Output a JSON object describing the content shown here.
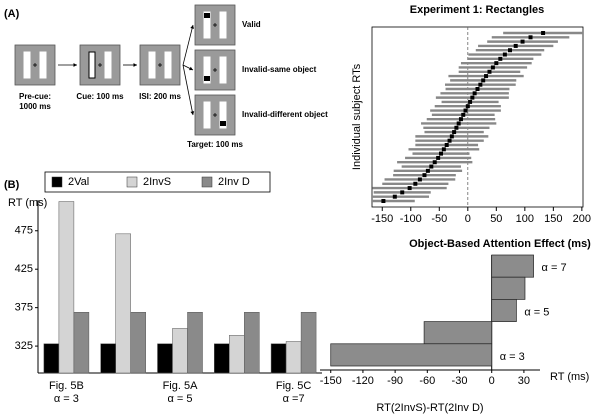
{
  "panel_labels": [
    "(A)",
    "(B)"
  ],
  "diagram": {
    "steps": [
      {
        "lines": [
          "Pre-cue:",
          "1000 ms"
        ]
      },
      {
        "lines": [
          "Cue: 100 ms"
        ]
      },
      {
        "lines": [
          "ISI: 200 ms"
        ]
      },
      {
        "lines": [
          "Target: 100 ms"
        ]
      }
    ],
    "targets": [
      "Valid",
      "Invalid-same object",
      "Invalid-different object"
    ]
  },
  "chart_data": [
    {
      "type": "errorbar",
      "title": "Experiment 1: Rectangles",
      "y_label": "Individual subject RTs",
      "values": [
        -148,
        -128,
        -115,
        -102,
        -92,
        -84,
        -76,
        -70,
        -64,
        -58,
        -52,
        -47,
        -42,
        -37,
        -32,
        -28,
        -24,
        -20,
        -16,
        -12,
        -8,
        -4,
        0,
        4,
        8,
        12,
        17,
        22,
        27,
        32,
        38,
        44,
        50,
        57,
        65,
        74,
        84,
        96,
        110,
        132
      ],
      "errors": [
        55,
        60,
        50,
        65,
        58,
        62,
        55,
        60,
        52,
        66,
        58,
        50,
        62,
        55,
        60,
        64,
        52,
        58,
        66,
        60,
        55,
        62,
        58,
        50,
        64,
        60,
        56,
        62,
        58,
        66,
        54,
        60,
        62,
        58,
        64,
        60,
        66,
        62,
        68,
        70
      ],
      "color": "#000000",
      "error_color": "#888888",
      "xlim": [
        -168,
        202
      ],
      "xticks": [
        -150,
        -100,
        -50,
        0,
        50,
        100,
        150,
        200
      ],
      "zero_line": true
    },
    {
      "type": "grouped_bar",
      "y_label": "RT (ms)",
      "categories": [
        "Fig. 5B",
        null,
        "Fig. 5A",
        null,
        "Fig. 5C"
      ],
      "category_sublabels": [
        "α = 3",
        null,
        "α = 5",
        null,
        "α =7"
      ],
      "series": [
        {
          "name": "2Val",
          "color": "#000000",
          "values": [
            328,
            328,
            328,
            328,
            328
          ]
        },
        {
          "name": "2InvS",
          "color": "#d4d4d4",
          "values": [
            513,
            471,
            348,
            339,
            331
          ]
        },
        {
          "name": "2Inv D",
          "color": "#8a8a8a",
          "values": [
            369,
            369,
            369,
            369,
            369
          ]
        }
      ],
      "ylim": [
        290,
        515
      ],
      "yticks": [
        325,
        375,
        425,
        475
      ]
    },
    {
      "type": "hbar",
      "title": "Object-Based Attention Effect (ms)",
      "x_label": "RT(2InvS)-RT(2Inv D)",
      "x_unit_label": "RT (ms)",
      "categories": [
        "α = 7",
        null,
        "α = 5",
        null,
        "α = 3"
      ],
      "values": [
        39,
        31,
        23,
        -63,
        -150
      ],
      "color": "#8c8c8c",
      "xlim": [
        -160,
        45
      ],
      "xticks": [
        -150,
        -120,
        -90,
        -60,
        -30,
        0,
        30
      ]
    }
  ]
}
